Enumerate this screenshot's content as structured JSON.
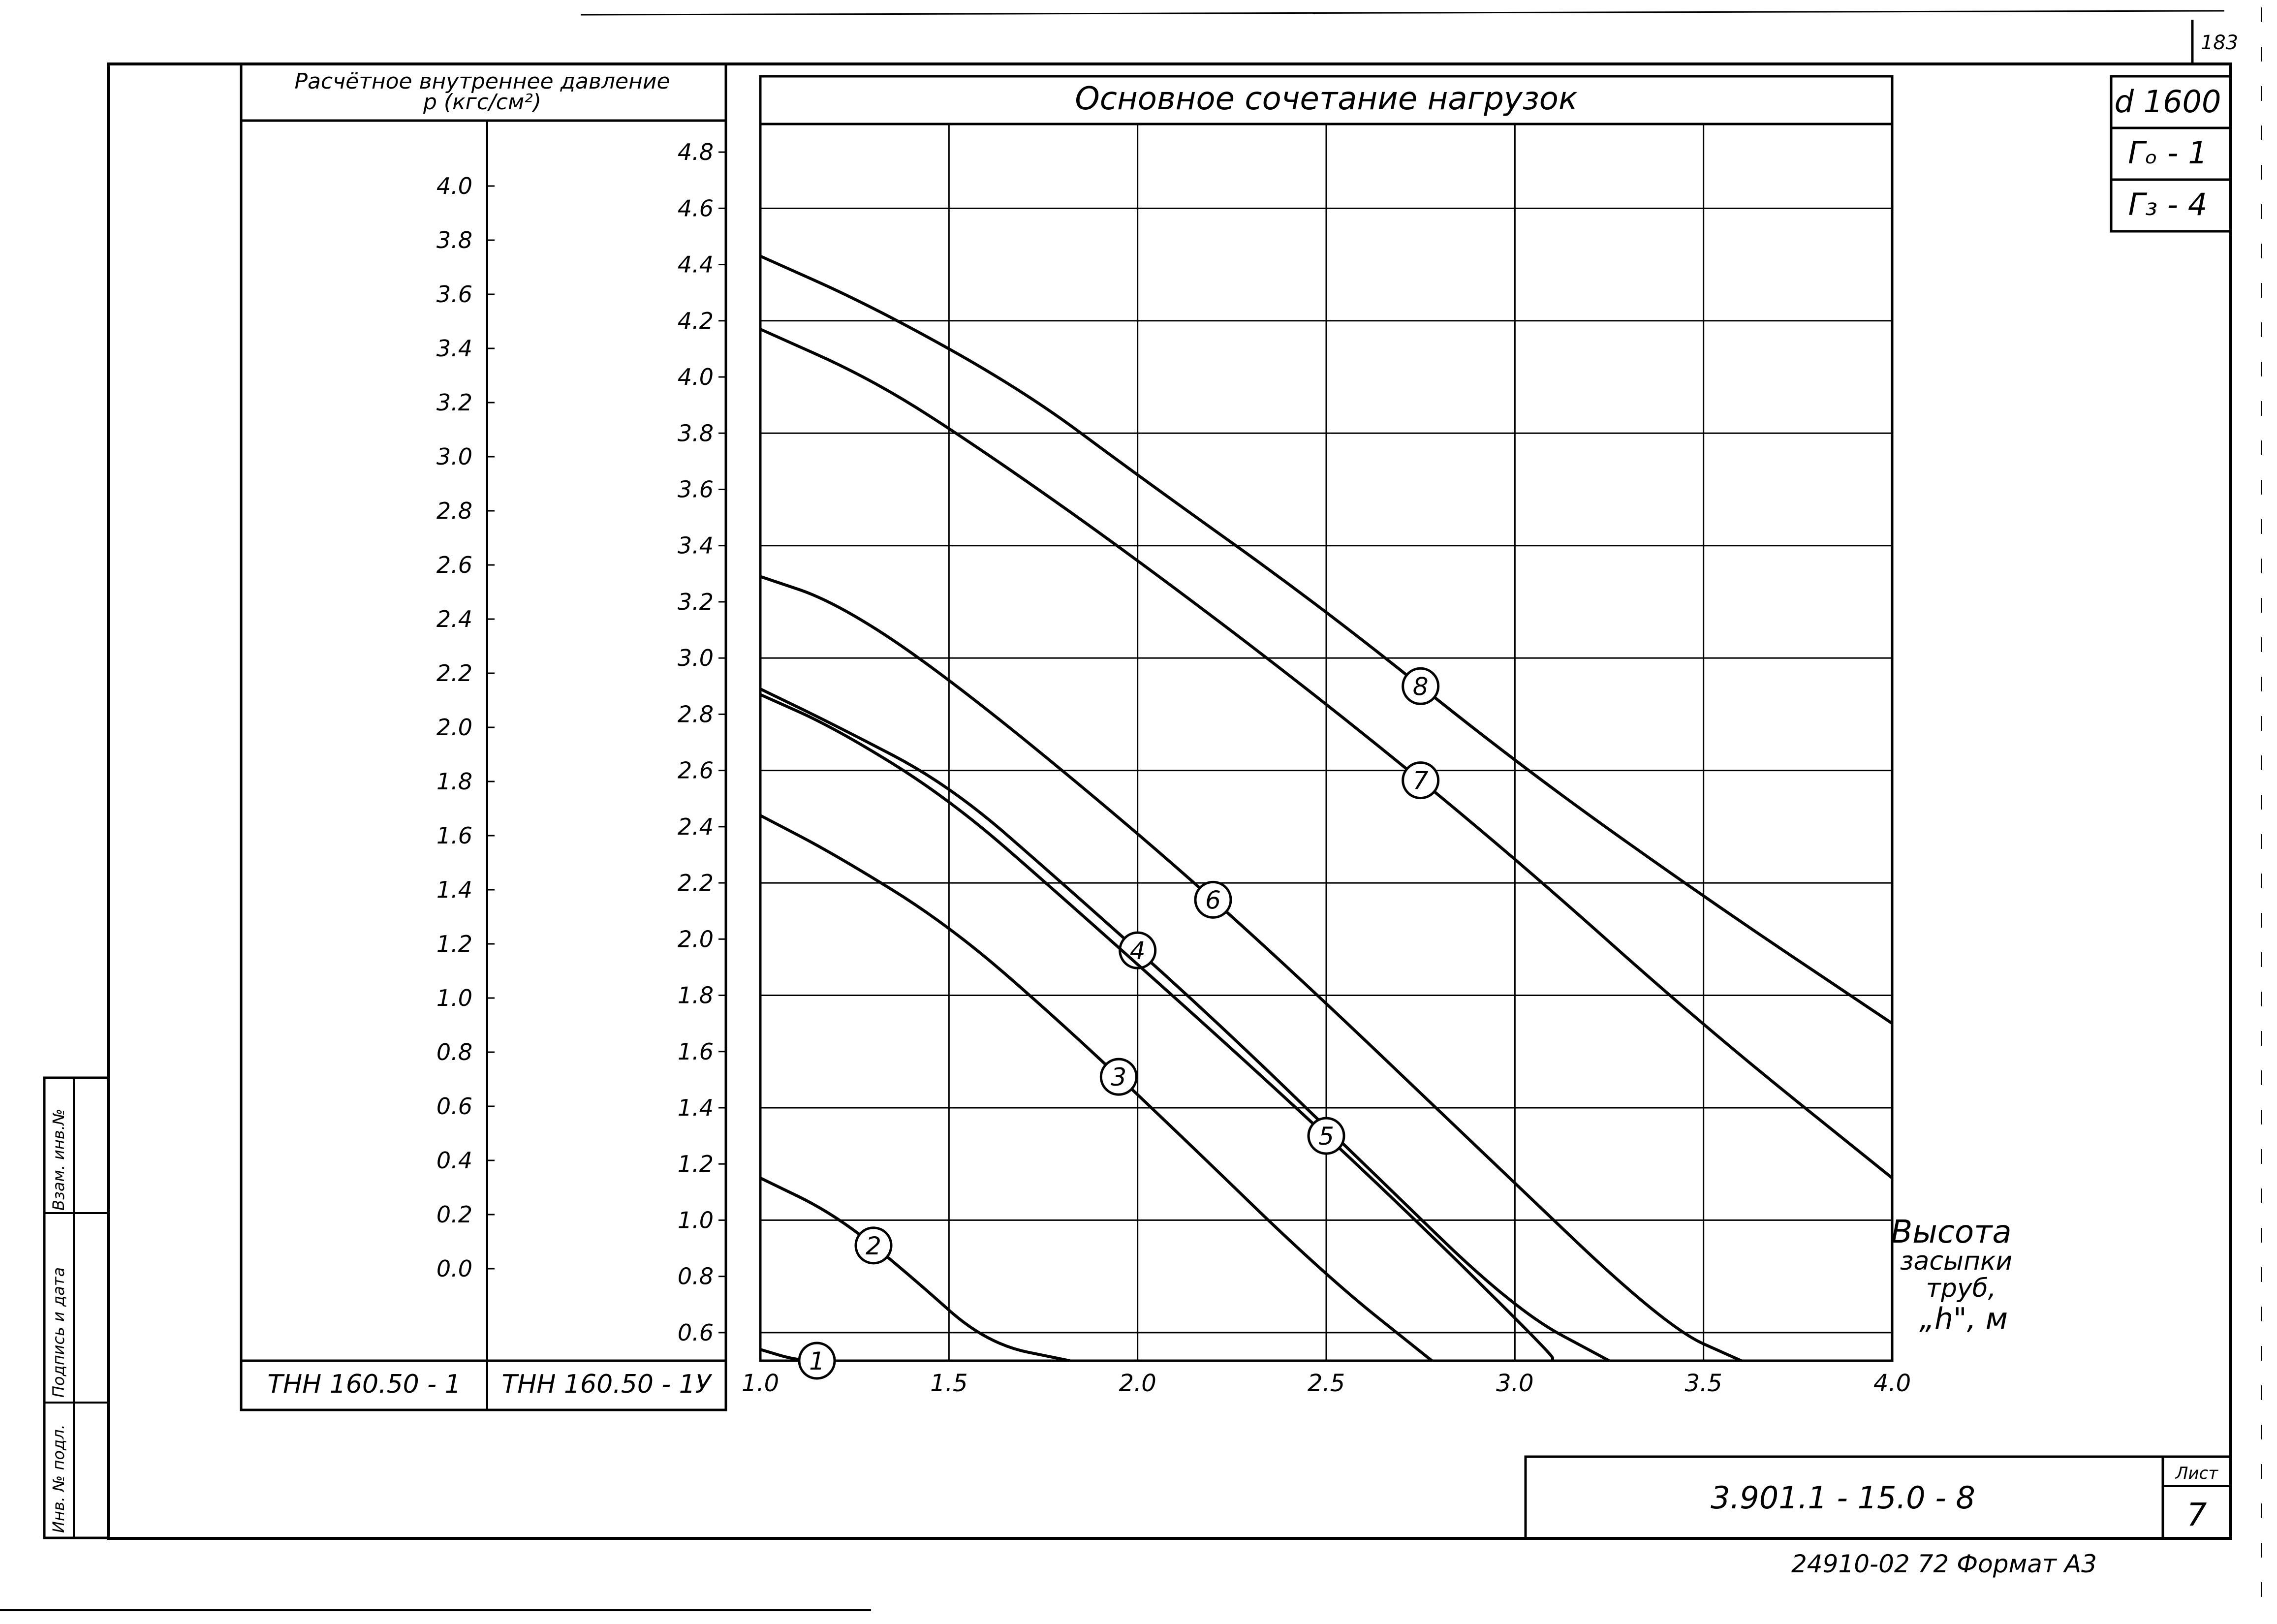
{
  "sheet": {
    "page_number": "183",
    "diameter": "d 1600",
    "tag_g0": "Гₒ - 1",
    "tag_g3": "Г₃ - 4",
    "doc_code": "3.901.1 - 15.0 - 8",
    "list_label": "Лист",
    "list_number": "7",
    "footer": "24910-02  72   Формат А3",
    "side_labels": [
      "Взам. инв.№",
      "Подпись и дата",
      "Инв. № подл."
    ]
  },
  "pressure_table": {
    "title_line1": "Расчётное внутреннее давление",
    "title_line2": "р (кгс/см²)",
    "col1_label": "ТНН 160.50 - 1",
    "col2_label": "ТНН 160.50 - 1У",
    "col1_ticks": [
      "4.0",
      "3.8",
      "3.6",
      "3.4",
      "3.2",
      "3.0",
      "2.8",
      "2.6",
      "2.4",
      "2.2",
      "2.0",
      "1.8",
      "1.6",
      "1.4",
      "1.2",
      "1.0",
      "0.8",
      "0.6",
      "0.4",
      "0.2",
      "0.0"
    ],
    "col2_ticks": [
      "4.8",
      "4.6",
      "4.4",
      "4.2",
      "4.0",
      "3.8",
      "3.6",
      "3.4",
      "3.2",
      "3.0",
      "2.8",
      "2.6",
      "2.4",
      "2.2",
      "2.0",
      "1.8",
      "1.6",
      "1.4",
      "1.2",
      "1.0",
      "0.8",
      "0.6"
    ]
  },
  "chart_data": {
    "type": "line",
    "title": "Основное   сочетание   нагрузок",
    "xlabel": "Высота засыпки труб, „h\", м",
    "xlabel_lines": [
      "Высота",
      "засыпки",
      "труб,",
      "„h\", м"
    ],
    "xlim": [
      1.0,
      4.0
    ],
    "ylim": [
      0.5,
      4.9
    ],
    "ylabel_ref": "ТНН 160.50 - 1У (кгс/см²)",
    "x_ticks": [
      "1.0",
      "1.5",
      "2.0",
      "2.5",
      "3.0",
      "3.5",
      "4.0"
    ],
    "grid": true,
    "series": [
      {
        "name": "1",
        "points": [
          [
            1.0,
            0.54
          ],
          [
            1.1,
            0.46
          ],
          [
            1.2,
            0.4
          ]
        ]
      },
      {
        "name": "2",
        "points": [
          [
            1.0,
            1.15
          ],
          [
            1.2,
            1.02
          ],
          [
            1.4,
            0.8
          ],
          [
            1.6,
            0.56
          ],
          [
            1.82,
            0.4
          ]
        ]
      },
      {
        "name": "3",
        "points": [
          [
            1.0,
            2.44
          ],
          [
            1.2,
            2.3
          ],
          [
            1.5,
            2.05
          ],
          [
            1.8,
            1.7
          ],
          [
            2.1,
            1.32
          ],
          [
            2.5,
            0.8
          ],
          [
            2.78,
            0.4
          ]
        ]
      },
      {
        "name": "4",
        "points": [
          [
            1.0,
            2.89
          ],
          [
            1.2,
            2.76
          ],
          [
            1.5,
            2.55
          ],
          [
            1.8,
            2.2
          ],
          [
            2.2,
            1.72
          ],
          [
            2.6,
            1.2
          ],
          [
            3.0,
            0.68
          ],
          [
            3.25,
            0.4
          ]
        ]
      },
      {
        "name": "5",
        "points": [
          [
            1.0,
            2.87
          ],
          [
            1.2,
            2.75
          ],
          [
            1.5,
            2.5
          ],
          [
            1.8,
            2.15
          ],
          [
            2.3,
            1.55
          ],
          [
            2.7,
            1.05
          ],
          [
            3.1,
            0.52
          ],
          [
            3.1,
            0.4
          ]
        ]
      },
      {
        "name": "6",
        "points": [
          [
            1.0,
            3.29
          ],
          [
            1.2,
            3.2
          ],
          [
            1.5,
            2.93
          ],
          [
            2.0,
            2.38
          ],
          [
            2.4,
            1.9
          ],
          [
            2.9,
            1.26
          ],
          [
            3.4,
            0.62
          ],
          [
            3.6,
            0.4
          ]
        ]
      },
      {
        "name": "7",
        "points": [
          [
            1.0,
            4.17
          ],
          [
            1.3,
            3.99
          ],
          [
            1.6,
            3.73
          ],
          [
            2.0,
            3.35
          ],
          [
            2.5,
            2.84
          ],
          [
            3.0,
            2.29
          ],
          [
            3.5,
            1.69
          ],
          [
            4.0,
            1.15
          ]
        ]
      },
      {
        "name": "8",
        "points": [
          [
            1.0,
            4.43
          ],
          [
            1.3,
            4.25
          ],
          [
            1.7,
            3.95
          ],
          [
            2.0,
            3.65
          ],
          [
            2.5,
            3.17
          ],
          [
            3.0,
            2.63
          ],
          [
            3.5,
            2.15
          ],
          [
            4.0,
            1.7
          ]
        ]
      }
    ]
  }
}
